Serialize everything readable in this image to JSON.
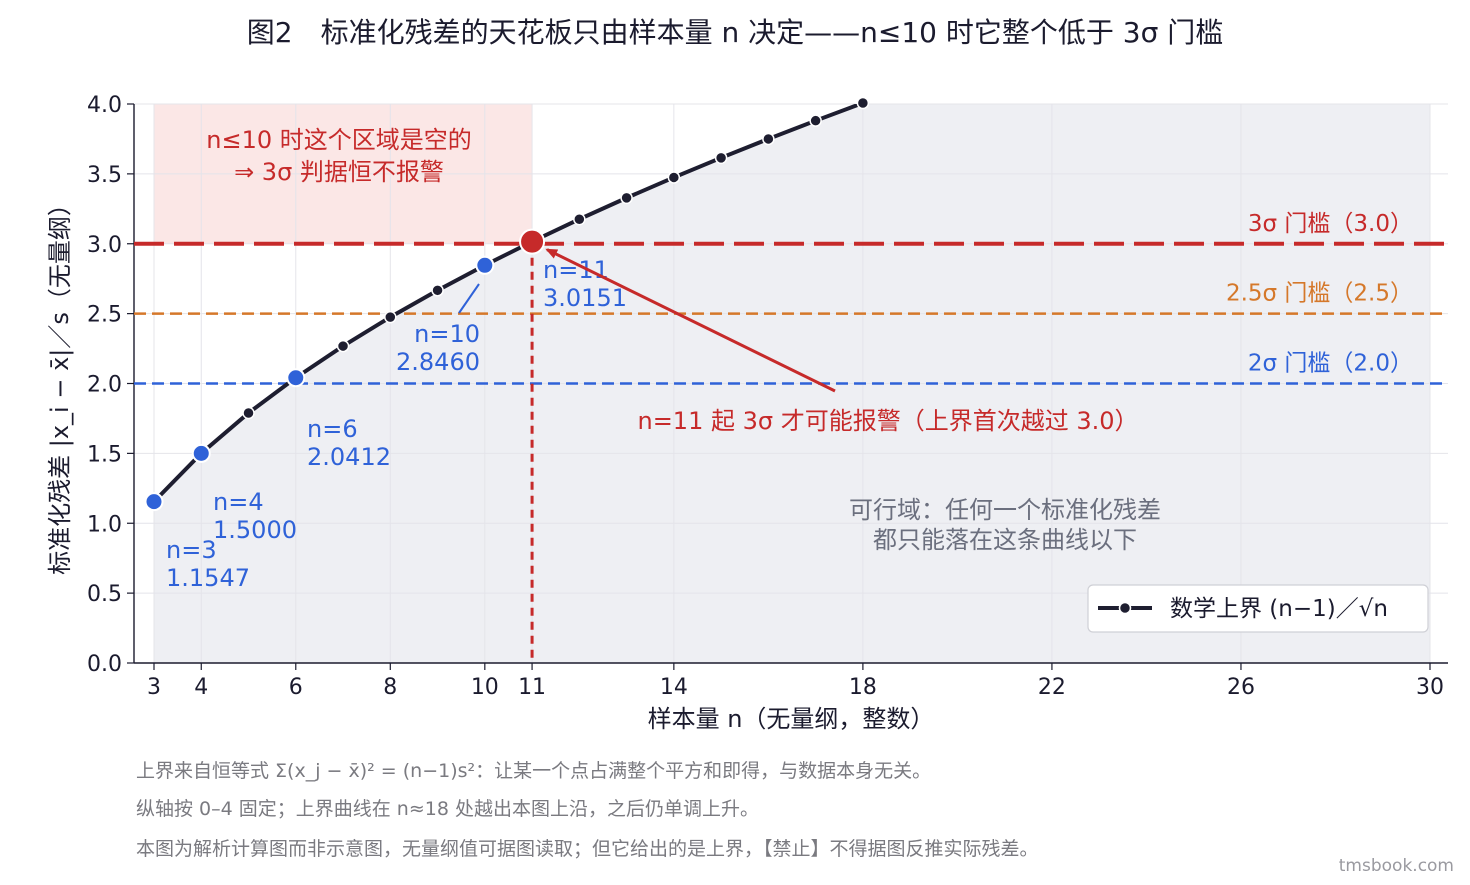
{
  "chart_data": {
    "type": "line",
    "title": "图2　标准化残差的天花板只由样本量 n 决定——n≤10 时它整个低于 3σ 门槛",
    "xlabel": "样本量 n（无量纲，整数）",
    "ylabel": "标准化残差 |x_i − x̄|／s（无量纲）",
    "xlim": [
      3,
      30
    ],
    "ylim": [
      0,
      4
    ],
    "x_ticks": [
      3,
      4,
      6,
      8,
      10,
      11,
      14,
      18,
      22,
      26,
      30
    ],
    "y_ticks": [
      "0.0",
      "0.5",
      "1.0",
      "1.5",
      "2.0",
      "2.5",
      "3.0",
      "3.5",
      "4.0"
    ],
    "grid": true,
    "legend_position": "bottom-right",
    "series": [
      {
        "name": "数学上界 (n−1)／√n",
        "color": "#1e1e30",
        "x": [
          3,
          4,
          5,
          6,
          7,
          8,
          9,
          10,
          11,
          12,
          13,
          14,
          15,
          16,
          17,
          18
        ],
        "y": [
          1.1547,
          1.5,
          1.7889,
          2.0412,
          2.2678,
          2.4749,
          2.6667,
          2.846,
          3.0151,
          3.1754,
          3.3282,
          3.4744,
          3.6148,
          3.75,
          3.8806,
          4.0069
        ]
      }
    ],
    "thresholds": [
      {
        "value": 3.0,
        "label": "3σ 门槛（3.0）",
        "color": "#c62a2a"
      },
      {
        "value": 2.5,
        "label": "2.5σ 门槛（2.5）",
        "color": "#d5782a"
      },
      {
        "value": 2.0,
        "label": "2σ 门槛（2.0）",
        "color": "#2f62d8"
      }
    ],
    "highlight_points": [
      {
        "x": 3,
        "y": 1.1547,
        "label_n": "n=3",
        "label_v": "1.1547",
        "color": "#2f62d8"
      },
      {
        "x": 4,
        "y": 1.5,
        "label_n": "n=4",
        "label_v": "1.5000",
        "color": "#2f62d8"
      },
      {
        "x": 6,
        "y": 2.0412,
        "label_n": "n=6",
        "label_v": "2.0412",
        "color": "#2f62d8"
      },
      {
        "x": 10,
        "y": 2.846,
        "label_n": "n=10",
        "label_v": "2.8460",
        "color": "#2f62d8"
      },
      {
        "x": 11,
        "y": 3.0151,
        "label_n": "n=11",
        "label_v": "3.0151",
        "color": "#c62a2a"
      }
    ],
    "annotations": {
      "empty_zone_line1": "n≤10 时这个区域是空的",
      "empty_zone_line2": "⇒ 3σ 判据恒不报警",
      "arrow_label": "n=11 起 3σ 才可能报警（上界首次越过 3.0）",
      "feasible_line1": "可行域：任何一个标准化残差",
      "feasible_line2": "都只能落在这条曲线以下"
    },
    "colors": {
      "feasible_fill": "#eeeff3",
      "empty_zone_fill": "#fbe7e6",
      "curve": "#1e1e30",
      "highlight_blue": "#2f62d8",
      "highlight_red": "#c62a2a"
    }
  },
  "notes": {
    "line1": "上界来自恒等式 Σ(x_j − x̄)² = (n−1)s²：让某一个点占满整个平方和即得，与数据本身无关。",
    "line2": "纵轴按 0–4 固定；上界曲线在 n≈18 处越出本图上沿，之后仍单调上升。",
    "line3": "本图为解析计算图而非示意图，无量纲值可据图读取；但它给出的是上界，【禁止】不得据图反推实际残差。"
  },
  "watermark": "tmsbook.com"
}
